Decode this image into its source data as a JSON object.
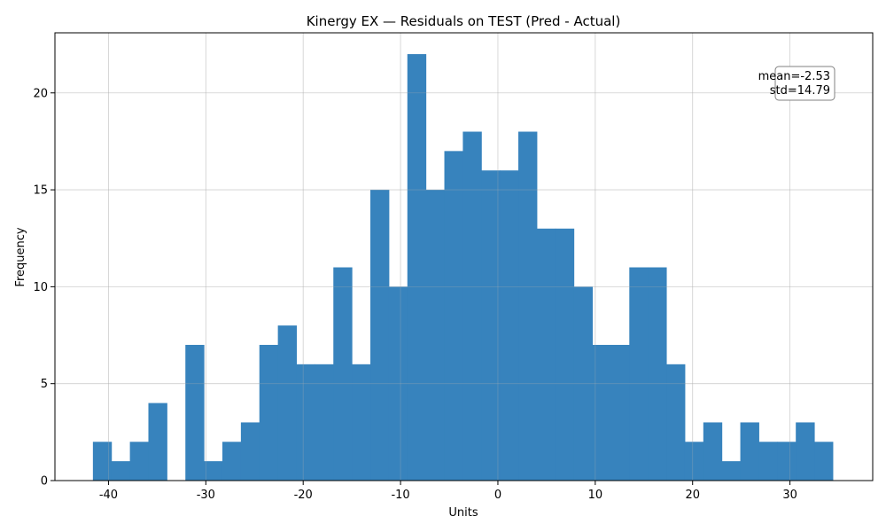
{
  "chart_data": {
    "type": "bar",
    "title": "Kinergy EX — Residuals on TEST (Pred - Actual)",
    "xlabel": "Units",
    "ylabel": "Frequency",
    "xlim": [
      -45.5,
      38.5
    ],
    "ylim": [
      0,
      23.1
    ],
    "xticks": [
      -40,
      -30,
      -20,
      -10,
      0,
      10,
      20,
      30
    ],
    "yticks": [
      0,
      5,
      10,
      15,
      20
    ],
    "grid": true,
    "bar_color": "#3783bd",
    "bins": [
      {
        "x0": -41.6,
        "x1": -39.7,
        "count": 2
      },
      {
        "x0": -39.7,
        "x1": -37.8,
        "count": 1
      },
      {
        "x0": -37.8,
        "x1": -35.9,
        "count": 2
      },
      {
        "x0": -35.9,
        "x1": -34.0,
        "count": 4
      },
      {
        "x0": -34.0,
        "x1": -32.1,
        "count": 0
      },
      {
        "x0": -32.1,
        "x1": -30.2,
        "count": 7
      },
      {
        "x0": -30.2,
        "x1": -28.3,
        "count": 1
      },
      {
        "x0": -28.3,
        "x1": -26.4,
        "count": 2
      },
      {
        "x0": -26.4,
        "x1": -24.5,
        "count": 3
      },
      {
        "x0": -24.5,
        "x1": -22.6,
        "count": 7
      },
      {
        "x0": -22.6,
        "x1": -20.7,
        "count": 8
      },
      {
        "x0": -20.7,
        "x1": -18.8,
        "count": 6
      },
      {
        "x0": -18.8,
        "x1": -16.9,
        "count": 6
      },
      {
        "x0": -16.9,
        "x1": -15.0,
        "count": 11
      },
      {
        "x0": -15.0,
        "x1": -13.1,
        "count": 6
      },
      {
        "x0": -13.1,
        "x1": -11.2,
        "count": 15
      },
      {
        "x0": -11.2,
        "x1": -9.3,
        "count": 10
      },
      {
        "x0": -9.3,
        "x1": -7.4,
        "count": 22
      },
      {
        "x0": -7.4,
        "x1": -5.5,
        "count": 15
      },
      {
        "x0": -5.5,
        "x1": -3.6,
        "count": 17
      },
      {
        "x0": -3.6,
        "x1": -1.7,
        "count": 18
      },
      {
        "x0": -1.7,
        "x1": 0.2,
        "count": 16
      },
      {
        "x0": 0.2,
        "x1": 2.1,
        "count": 16
      },
      {
        "x0": 2.1,
        "x1": 4.0,
        "count": 18
      },
      {
        "x0": 4.0,
        "x1": 5.9,
        "count": 13
      },
      {
        "x0": 5.9,
        "x1": 7.8,
        "count": 13
      },
      {
        "x0": 7.8,
        "x1": 9.7,
        "count": 10
      },
      {
        "x0": 9.7,
        "x1": 11.6,
        "count": 7
      },
      {
        "x0": 11.6,
        "x1": 13.5,
        "count": 7
      },
      {
        "x0": 13.5,
        "x1": 15.4,
        "count": 11
      },
      {
        "x0": 15.4,
        "x1": 17.3,
        "count": 11
      },
      {
        "x0": 17.3,
        "x1": 19.2,
        "count": 6
      },
      {
        "x0": 19.2,
        "x1": 21.1,
        "count": 2
      },
      {
        "x0": 21.1,
        "x1": 23.0,
        "count": 3
      },
      {
        "x0": 23.0,
        "x1": 24.9,
        "count": 1
      },
      {
        "x0": 24.9,
        "x1": 26.8,
        "count": 3
      },
      {
        "x0": 26.8,
        "x1": 28.7,
        "count": 2
      },
      {
        "x0": 28.7,
        "x1": 30.6,
        "count": 2
      },
      {
        "x0": 30.6,
        "x1": 32.5,
        "count": 3
      },
      {
        "x0": 32.5,
        "x1": 34.4,
        "count": 2
      }
    ],
    "annotation": {
      "mean_text": "mean=-2.53",
      "std_text": "std=14.79"
    }
  }
}
